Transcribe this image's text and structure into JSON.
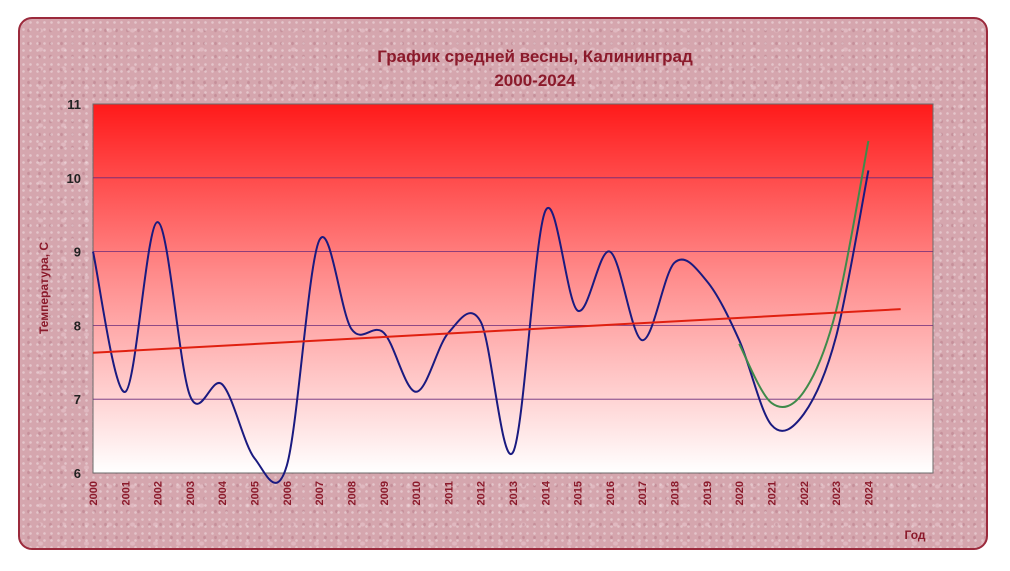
{
  "chart_data": {
    "type": "line",
    "title_line1": "График средней весны, Калининград",
    "title_line2": "2000-2024",
    "ylabel": "Температура, С",
    "xlabel": "Год",
    "ylim": [
      6,
      11
    ],
    "yticks": [
      6,
      7,
      8,
      9,
      10,
      11
    ],
    "categories": [
      "2000",
      "2001",
      "2002",
      "2003",
      "2004",
      "2005",
      "2006",
      "2007",
      "2008",
      "2009",
      "2010",
      "2011",
      "2012",
      "2013",
      "2014",
      "2015",
      "2016",
      "2017",
      "2018",
      "2019",
      "2020",
      "2021",
      "2022",
      "2023",
      "2024"
    ],
    "series": [
      {
        "values": [
          9.0,
          7.1,
          9.4,
          7.05,
          7.2,
          6.2,
          6.1,
          9.15,
          7.95,
          7.9,
          7.1,
          7.9,
          8.05,
          6.28,
          9.55,
          8.2,
          9.0,
          7.8,
          8.85,
          8.6,
          7.8,
          6.65,
          6.8,
          7.85,
          10.1
        ],
        "color": "#1a1a80"
      },
      {
        "x": [
          "2020",
          "2021",
          "2022",
          "2023",
          "2024"
        ],
        "values": [
          7.75,
          6.95,
          7.1,
          8.2,
          10.5
        ],
        "color": "#3f8a4a"
      },
      {
        "trend": true,
        "x": [
          "2000",
          "2025"
        ],
        "values": [
          7.63,
          8.22
        ],
        "color": "#e02010"
      }
    ],
    "grid": true,
    "legend": "none",
    "colors": {
      "plot_top": "#ff1a1a",
      "plot_bottom": "#ffffff",
      "frame_border": "#9b2a3c",
      "text": "#8b1a2b"
    }
  }
}
